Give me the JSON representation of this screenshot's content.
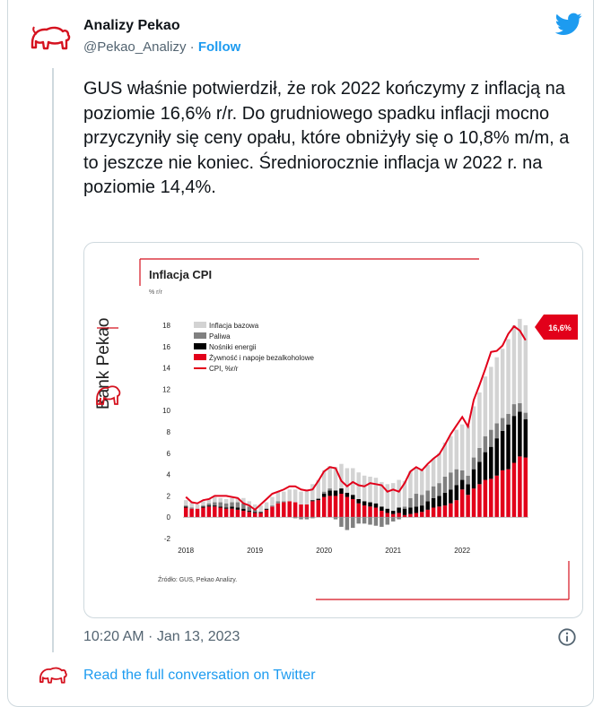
{
  "tweet": {
    "author_name": "Analizy Pekao",
    "handle": "@Pekao_Analizy",
    "separator": "·",
    "follow_label": "Follow",
    "text": "GUS właśnie potwierdził, że rok 2022 kończymy z inflacją na poziomie 16,6% r/r. Do grudniowego spadku inflacji mocno przyczyniły się ceny opału, które obniżyły się o 10,8% m/m, a to jeszcze nie koniec. Średniorocznie inflacja w 2022 r. na poziomie 14,4%.",
    "timestamp": "10:20 AM · Jan 13, 2023",
    "read_link": "Read the full conversation on Twitter"
  },
  "icons": {
    "avatar": "pekao-bison-logo",
    "brand": "twitter-bird-icon",
    "info": "info-icon"
  },
  "colors": {
    "twitter_blue": "#1d9bf0",
    "pekao_red": "#d5121f",
    "muted_text": "#536471"
  },
  "image": {
    "brand_label": "Bank Pekao",
    "source": "Źródło: GUS, Pekao Analizy.",
    "badge": "16,6%"
  },
  "chart_data": {
    "type": "bar",
    "title": "Inflacja CPI",
    "ylabel": "% r/r",
    "xlabel": "",
    "ylim": [
      -2,
      18
    ],
    "yticks": [
      18,
      16,
      14,
      12,
      10,
      8,
      6,
      4,
      2,
      0,
      -2
    ],
    "xtick_labels": [
      "2018",
      "2019",
      "2020",
      "2021",
      "2022"
    ],
    "grid": false,
    "legend_position": "top-left",
    "stacked": true,
    "x": [
      "2018-01",
      "2018-02",
      "2018-03",
      "2018-04",
      "2018-05",
      "2018-06",
      "2018-07",
      "2018-08",
      "2018-09",
      "2018-10",
      "2018-11",
      "2018-12",
      "2019-01",
      "2019-02",
      "2019-03",
      "2019-04",
      "2019-05",
      "2019-06",
      "2019-07",
      "2019-08",
      "2019-09",
      "2019-10",
      "2019-11",
      "2019-12",
      "2020-01",
      "2020-02",
      "2020-03",
      "2020-04",
      "2020-05",
      "2020-06",
      "2020-07",
      "2020-08",
      "2020-09",
      "2020-10",
      "2020-11",
      "2020-12",
      "2021-01",
      "2021-02",
      "2021-03",
      "2021-04",
      "2021-05",
      "2021-06",
      "2021-07",
      "2021-08",
      "2021-09",
      "2021-10",
      "2021-11",
      "2021-12",
      "2022-01",
      "2022-02",
      "2022-03",
      "2022-04",
      "2022-05",
      "2022-06",
      "2022-07",
      "2022-08",
      "2022-09",
      "2022-10",
      "2022-11",
      "2022-12"
    ],
    "series": [
      {
        "name": "Żywność i napoje bezalkoholowe",
        "color": "#e2001a",
        "values": [
          0.9,
          0.8,
          0.8,
          0.9,
          1.0,
          1.0,
          0.9,
          0.8,
          0.8,
          0.7,
          0.6,
          0.5,
          0.4,
          0.4,
          0.7,
          1.0,
          1.3,
          1.4,
          1.5,
          1.4,
          1.2,
          1.2,
          1.5,
          1.6,
          1.9,
          2.0,
          2.0,
          2.2,
          1.9,
          1.7,
          1.3,
          1.1,
          1.0,
          0.9,
          0.6,
          0.4,
          0.3,
          0.4,
          0.2,
          0.3,
          0.4,
          0.5,
          0.7,
          0.9,
          1.0,
          1.1,
          1.3,
          1.6,
          2.6,
          2.1,
          2.7,
          3.1,
          3.5,
          3.6,
          3.9,
          4.4,
          4.5,
          5.1,
          5.7,
          5.6
        ]
      },
      {
        "name": "Nośniki energii",
        "color": "#000000",
        "values": [
          0.1,
          0.0,
          0.0,
          0.1,
          0.1,
          0.1,
          0.1,
          0.1,
          0.2,
          0.2,
          0.2,
          0.1,
          0.1,
          0.1,
          0.1,
          0.0,
          0.0,
          0.0,
          0.0,
          0.0,
          0.0,
          0.0,
          0.1,
          0.1,
          0.3,
          0.5,
          0.5,
          0.5,
          0.4,
          0.4,
          0.4,
          0.4,
          0.4,
          0.4,
          0.4,
          0.4,
          0.3,
          0.5,
          0.6,
          0.6,
          0.6,
          0.6,
          0.8,
          0.9,
          1.0,
          1.2,
          1.3,
          1.4,
          0.9,
          1.0,
          1.8,
          2.1,
          2.6,
          3.0,
          3.5,
          3.7,
          4.2,
          4.4,
          4.2,
          3.6
        ]
      },
      {
        "name": "Paliwa",
        "color": "#808080",
        "values": [
          0.1,
          0.1,
          0.0,
          0.1,
          0.2,
          0.3,
          0.4,
          0.4,
          0.4,
          0.5,
          0.5,
          0.4,
          0.2,
          0.0,
          0.0,
          0.1,
          0.2,
          0.1,
          0.0,
          -0.1,
          -0.2,
          -0.2,
          -0.1,
          0.1,
          0.2,
          0.2,
          -0.2,
          -0.9,
          -1.2,
          -1.0,
          -0.6,
          -0.6,
          -0.7,
          -0.8,
          -0.9,
          -0.7,
          -0.4,
          -0.2,
          0.2,
          0.9,
          1.2,
          1.0,
          1.0,
          1.1,
          1.2,
          1.5,
          1.6,
          1.5,
          0.9,
          0.8,
          1.1,
          1.3,
          1.5,
          1.6,
          1.4,
          1.2,
          1.0,
          1.1,
          0.8,
          0.6
        ]
      },
      {
        "name": "Inflacja bazowa",
        "color": "#d3d3d3",
        "values": [
          0.5,
          0.5,
          0.4,
          0.4,
          0.4,
          0.5,
          0.4,
          0.4,
          0.4,
          0.4,
          0.5,
          0.5,
          0.5,
          0.6,
          0.6,
          0.8,
          0.9,
          0.9,
          1.1,
          1.2,
          1.2,
          1.4,
          1.5,
          1.7,
          2.0,
          2.1,
          2.2,
          2.3,
          2.3,
          2.5,
          2.5,
          2.4,
          2.4,
          2.4,
          2.3,
          2.3,
          2.6,
          2.6,
          2.4,
          2.5,
          2.5,
          2.3,
          2.4,
          2.6,
          2.8,
          3.2,
          3.4,
          3.7,
          4.3,
          4.7,
          4.8,
          5.2,
          5.6,
          5.9,
          6.2,
          6.5,
          7.0,
          7.4,
          7.9,
          8.2
        ]
      },
      {
        "name": "CPI, %r/r",
        "color": "#e2001a",
        "type": "line",
        "values": [
          1.9,
          1.4,
          1.3,
          1.6,
          1.7,
          2.0,
          2.0,
          2.0,
          1.9,
          1.8,
          1.3,
          1.1,
          0.7,
          1.2,
          1.7,
          2.2,
          2.4,
          2.6,
          2.9,
          2.9,
          2.6,
          2.5,
          2.6,
          3.4,
          4.3,
          4.7,
          4.6,
          3.4,
          2.9,
          3.3,
          3.0,
          2.9,
          3.2,
          3.1,
          3.0,
          2.4,
          2.6,
          2.4,
          3.2,
          4.3,
          4.7,
          4.4,
          5.0,
          5.5,
          5.9,
          6.8,
          7.8,
          8.6,
          9.4,
          8.5,
          11.0,
          12.4,
          13.9,
          15.5,
          15.6,
          16.1,
          17.2,
          17.9,
          17.5,
          16.6
        ]
      }
    ]
  }
}
